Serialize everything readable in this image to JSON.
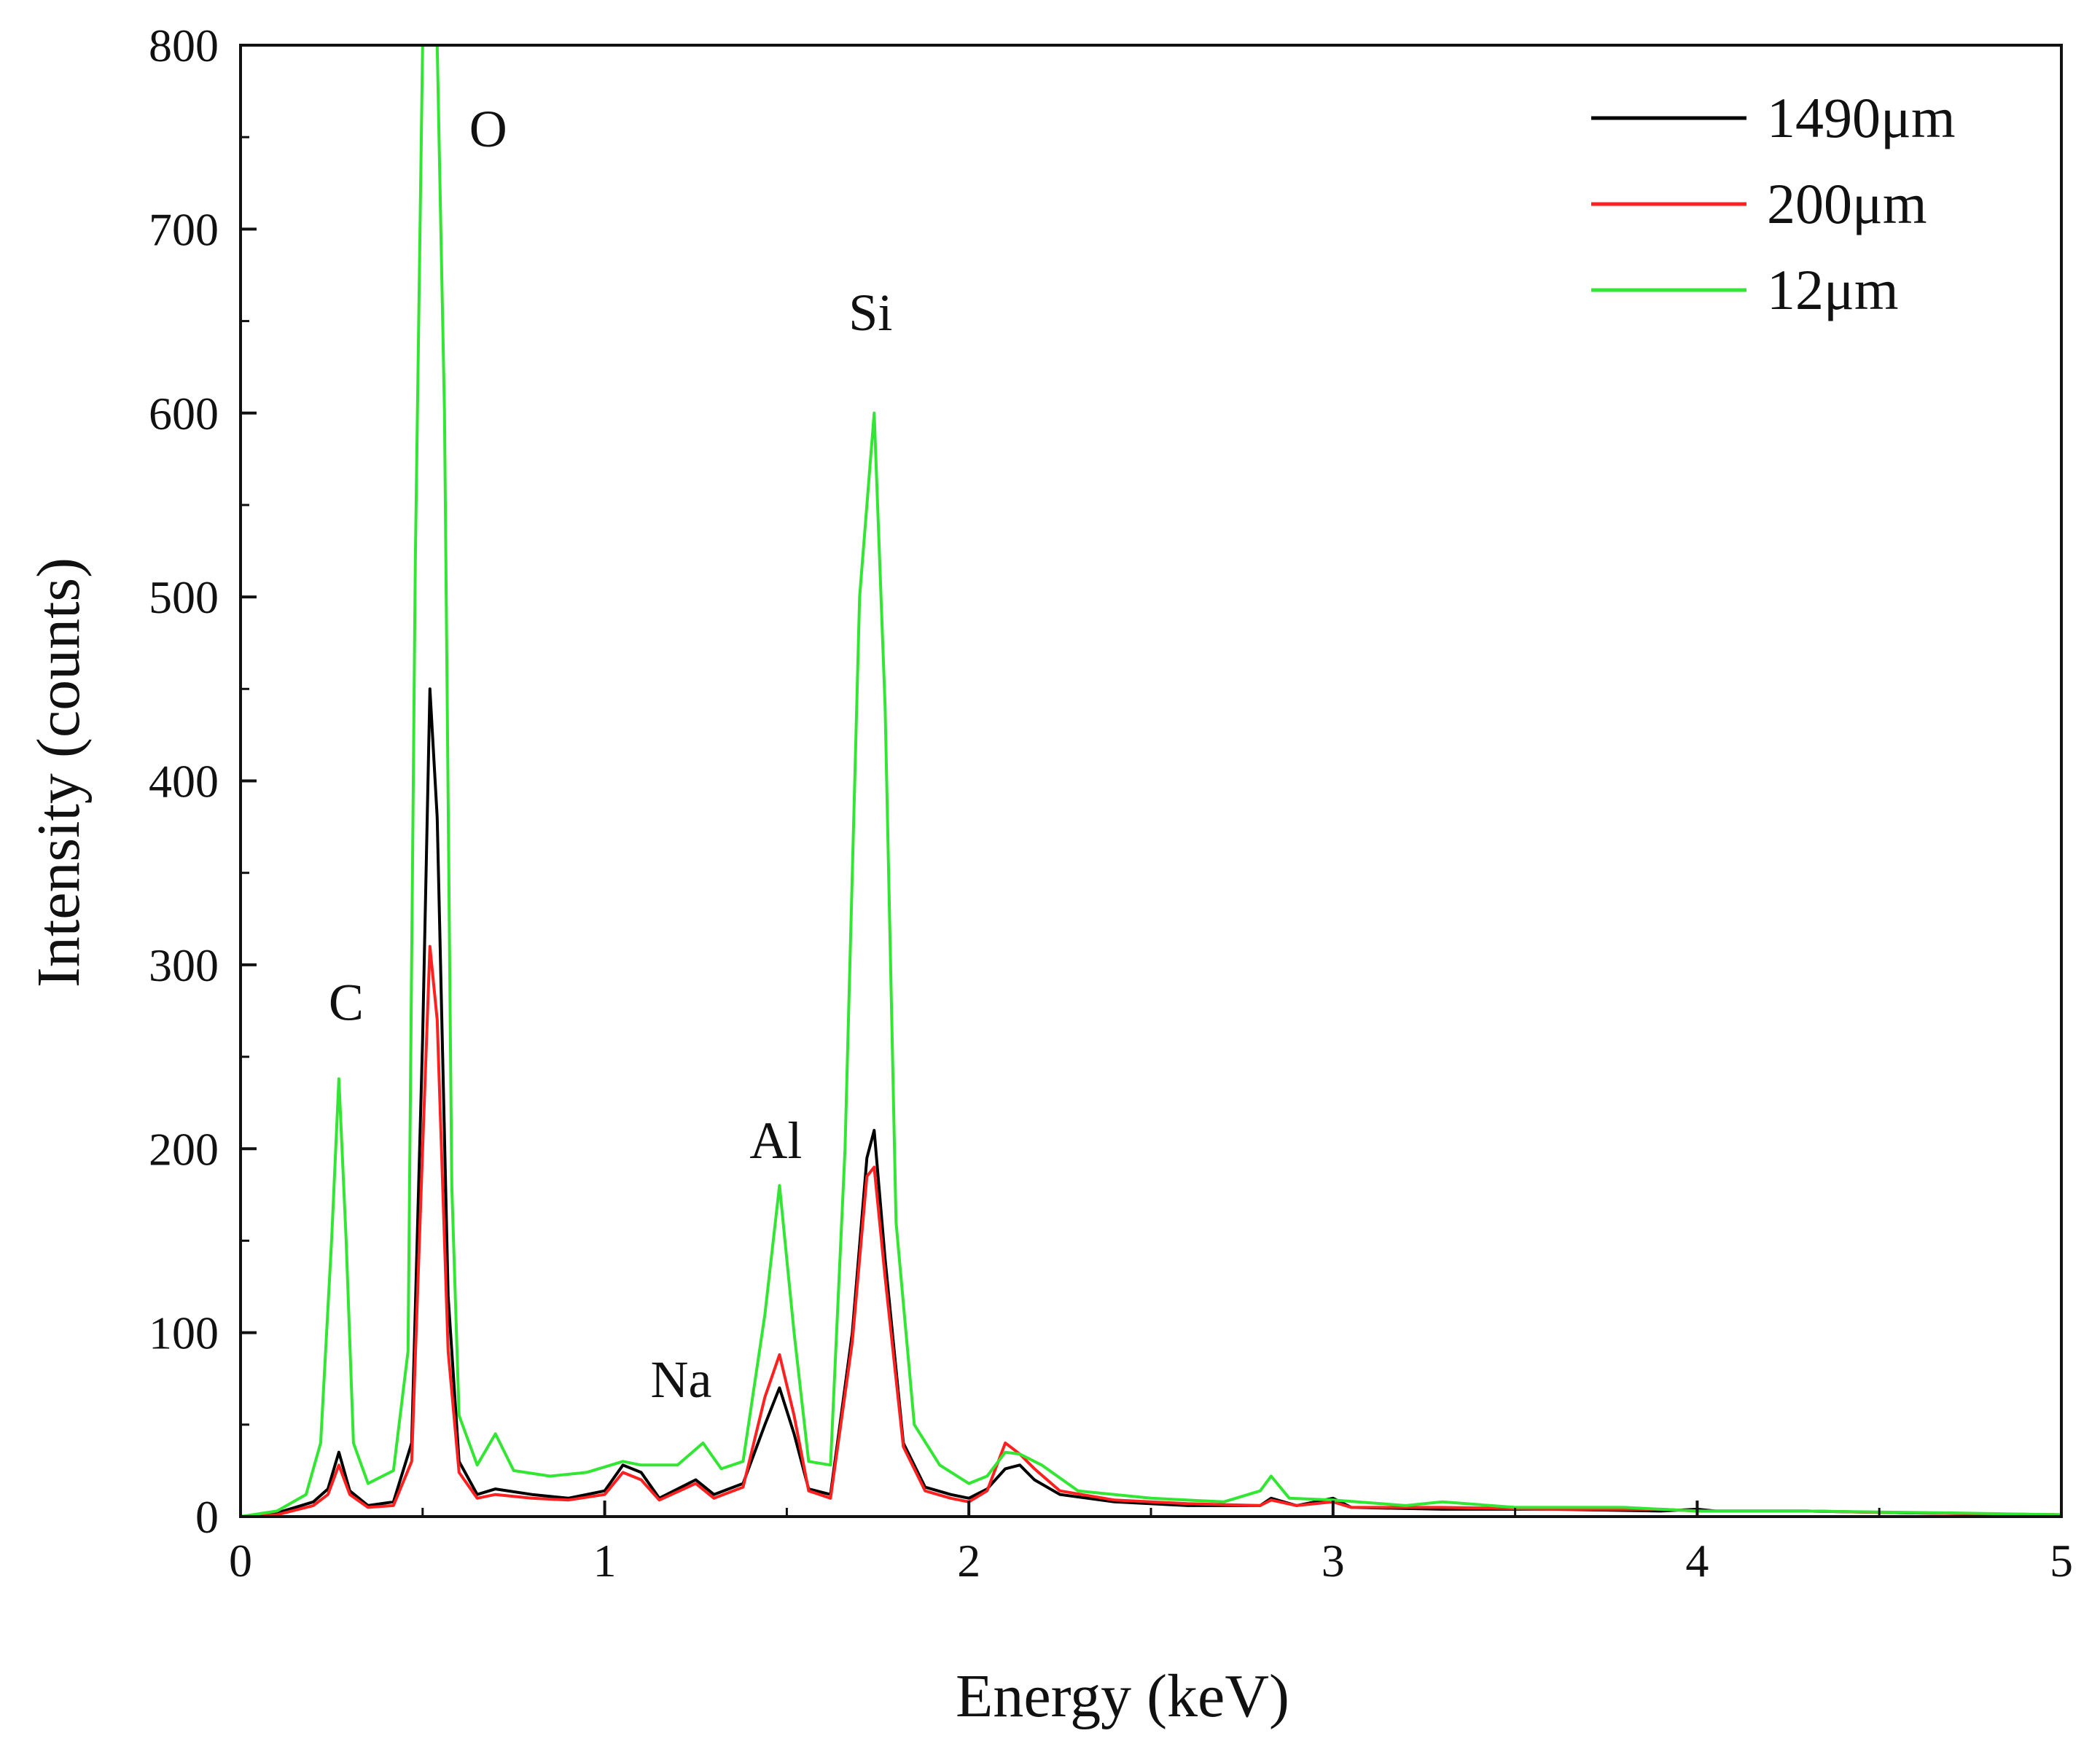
{
  "chart_data": {
    "type": "line",
    "title": "",
    "xlabel": "Energy (keV)",
    "ylabel": "Intensity (counts)",
    "xlim": [
      0,
      5
    ],
    "ylim": [
      0,
      800
    ],
    "xticks": [
      0,
      1,
      2,
      3,
      4,
      5
    ],
    "yticks": [
      0,
      100,
      200,
      300,
      400,
      500,
      600,
      700,
      800
    ],
    "legend_position": "top-right",
    "grid": false,
    "series": [
      {
        "name": "1490μm",
        "color": "#000000",
        "points": [
          [
            0,
            0
          ],
          [
            0.1,
            2
          ],
          [
            0.2,
            8
          ],
          [
            0.24,
            15
          ],
          [
            0.27,
            35
          ],
          [
            0.3,
            14
          ],
          [
            0.35,
            6
          ],
          [
            0.42,
            8
          ],
          [
            0.47,
            40
          ],
          [
            0.5,
            260
          ],
          [
            0.52,
            450
          ],
          [
            0.54,
            380
          ],
          [
            0.57,
            120
          ],
          [
            0.6,
            30
          ],
          [
            0.65,
            12
          ],
          [
            0.7,
            15
          ],
          [
            0.8,
            12
          ],
          [
            0.9,
            10
          ],
          [
            1.0,
            14
          ],
          [
            1.05,
            28
          ],
          [
            1.1,
            24
          ],
          [
            1.15,
            10
          ],
          [
            1.25,
            20
          ],
          [
            1.3,
            12
          ],
          [
            1.38,
            18
          ],
          [
            1.44,
            50
          ],
          [
            1.48,
            70
          ],
          [
            1.52,
            45
          ],
          [
            1.56,
            15
          ],
          [
            1.62,
            12
          ],
          [
            1.68,
            100
          ],
          [
            1.72,
            195
          ],
          [
            1.74,
            210
          ],
          [
            1.77,
            140
          ],
          [
            1.82,
            40
          ],
          [
            1.88,
            16
          ],
          [
            1.95,
            12
          ],
          [
            2.0,
            10
          ],
          [
            2.05,
            15
          ],
          [
            2.1,
            26
          ],
          [
            2.14,
            28
          ],
          [
            2.18,
            20
          ],
          [
            2.25,
            12
          ],
          [
            2.4,
            8
          ],
          [
            2.6,
            6
          ],
          [
            2.8,
            6
          ],
          [
            2.83,
            10
          ],
          [
            2.9,
            6
          ],
          [
            3.0,
            10
          ],
          [
            3.05,
            5
          ],
          [
            3.3,
            4
          ],
          [
            3.6,
            4
          ],
          [
            3.9,
            3
          ],
          [
            4.0,
            4
          ],
          [
            4.05,
            3
          ],
          [
            4.3,
            3
          ],
          [
            4.6,
            2
          ],
          [
            5.0,
            1
          ]
        ]
      },
      {
        "name": "200μm",
        "color": "#ff2020",
        "points": [
          [
            0,
            0
          ],
          [
            0.1,
            1
          ],
          [
            0.2,
            6
          ],
          [
            0.24,
            12
          ],
          [
            0.27,
            28
          ],
          [
            0.3,
            12
          ],
          [
            0.35,
            5
          ],
          [
            0.42,
            6
          ],
          [
            0.47,
            30
          ],
          [
            0.5,
            200
          ],
          [
            0.52,
            310
          ],
          [
            0.54,
            270
          ],
          [
            0.57,
            90
          ],
          [
            0.6,
            24
          ],
          [
            0.65,
            10
          ],
          [
            0.7,
            12
          ],
          [
            0.8,
            10
          ],
          [
            0.9,
            9
          ],
          [
            1.0,
            12
          ],
          [
            1.05,
            24
          ],
          [
            1.1,
            20
          ],
          [
            1.15,
            9
          ],
          [
            1.25,
            18
          ],
          [
            1.3,
            10
          ],
          [
            1.38,
            16
          ],
          [
            1.44,
            65
          ],
          [
            1.48,
            88
          ],
          [
            1.52,
            55
          ],
          [
            1.56,
            14
          ],
          [
            1.62,
            10
          ],
          [
            1.68,
            95
          ],
          [
            1.72,
            185
          ],
          [
            1.74,
            190
          ],
          [
            1.77,
            130
          ],
          [
            1.82,
            38
          ],
          [
            1.88,
            14
          ],
          [
            1.95,
            10
          ],
          [
            2.0,
            8
          ],
          [
            2.05,
            14
          ],
          [
            2.1,
            40
          ],
          [
            2.14,
            34
          ],
          [
            2.18,
            26
          ],
          [
            2.25,
            14
          ],
          [
            2.4,
            9
          ],
          [
            2.6,
            7
          ],
          [
            2.8,
            6
          ],
          [
            2.83,
            9
          ],
          [
            2.9,
            6
          ],
          [
            3.0,
            8
          ],
          [
            3.05,
            5
          ],
          [
            3.3,
            5
          ],
          [
            3.6,
            4
          ],
          [
            3.9,
            4
          ],
          [
            4.0,
            3
          ],
          [
            4.3,
            3
          ],
          [
            4.6,
            2
          ],
          [
            5.0,
            1
          ]
        ]
      },
      {
        "name": "12μm",
        "color": "#33e633",
        "points": [
          [
            0,
            0
          ],
          [
            0.1,
            3
          ],
          [
            0.18,
            12
          ],
          [
            0.22,
            40
          ],
          [
            0.25,
            150
          ],
          [
            0.27,
            238
          ],
          [
            0.29,
            150
          ],
          [
            0.31,
            40
          ],
          [
            0.35,
            18
          ],
          [
            0.42,
            25
          ],
          [
            0.46,
            90
          ],
          [
            0.48,
            520
          ],
          [
            0.5,
            800
          ],
          [
            0.52,
            800
          ],
          [
            0.54,
            800
          ],
          [
            0.56,
            600
          ],
          [
            0.58,
            180
          ],
          [
            0.6,
            55
          ],
          [
            0.65,
            28
          ],
          [
            0.7,
            45
          ],
          [
            0.75,
            25
          ],
          [
            0.85,
            22
          ],
          [
            0.95,
            24
          ],
          [
            1.05,
            30
          ],
          [
            1.1,
            28
          ],
          [
            1.2,
            28
          ],
          [
            1.27,
            40
          ],
          [
            1.32,
            26
          ],
          [
            1.38,
            30
          ],
          [
            1.44,
            110
          ],
          [
            1.48,
            180
          ],
          [
            1.52,
            100
          ],
          [
            1.56,
            30
          ],
          [
            1.62,
            28
          ],
          [
            1.66,
            200
          ],
          [
            1.7,
            500
          ],
          [
            1.74,
            600
          ],
          [
            1.77,
            440
          ],
          [
            1.8,
            160
          ],
          [
            1.85,
            50
          ],
          [
            1.92,
            28
          ],
          [
            2.0,
            18
          ],
          [
            2.05,
            22
          ],
          [
            2.1,
            35
          ],
          [
            2.14,
            34
          ],
          [
            2.2,
            28
          ],
          [
            2.3,
            14
          ],
          [
            2.5,
            10
          ],
          [
            2.7,
            8
          ],
          [
            2.8,
            14
          ],
          [
            2.83,
            22
          ],
          [
            2.88,
            10
          ],
          [
            3.0,
            9
          ],
          [
            3.2,
            6
          ],
          [
            3.3,
            8
          ],
          [
            3.5,
            5
          ],
          [
            3.8,
            5
          ],
          [
            4.0,
            3
          ],
          [
            4.3,
            3
          ],
          [
            4.7,
            2
          ],
          [
            5.0,
            1
          ]
        ]
      }
    ],
    "annotations": [
      {
        "text": "O",
        "x": 0.68,
        "y": 745
      },
      {
        "text": "C",
        "x": 0.29,
        "y": 270
      },
      {
        "text": "Si",
        "x": 1.73,
        "y": 645
      },
      {
        "text": "Al",
        "x": 1.47,
        "y": 195
      },
      {
        "text": "Na",
        "x": 1.21,
        "y": 65
      }
    ]
  }
}
